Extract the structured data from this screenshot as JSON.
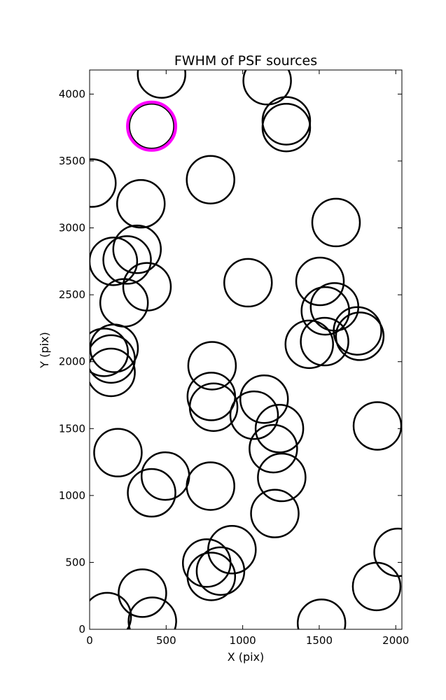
{
  "chart_data": {
    "type": "scatter",
    "title": "FWHM of PSF sources",
    "xlabel": "X (pix)",
    "ylabel": "Y (pix)",
    "xlim": [
      0,
      2040
    ],
    "ylim": [
      0,
      4180
    ],
    "xticks": [
      0,
      500,
      1000,
      1500,
      2000
    ],
    "yticks": [
      0,
      500,
      1000,
      1500,
      2000,
      2500,
      3000,
      3500,
      4000
    ],
    "grid": false,
    "marker": "open-circle",
    "highlight_color": "#ff00ff",
    "series": [
      {
        "points": [
          {
            "x": 470,
            "y": 4150
          },
          {
            "x": 1160,
            "y": 4100
          },
          {
            "x": 1285,
            "y": 3800
          },
          {
            "x": 1285,
            "y": 3750
          },
          {
            "x": 15,
            "y": 3335
          },
          {
            "x": 790,
            "y": 3360
          },
          {
            "x": 335,
            "y": 3180
          },
          {
            "x": 1610,
            "y": 3040
          },
          {
            "x": 310,
            "y": 2840
          },
          {
            "x": 155,
            "y": 2750
          },
          {
            "x": 245,
            "y": 2760
          },
          {
            "x": 375,
            "y": 2560
          },
          {
            "x": 225,
            "y": 2440
          },
          {
            "x": 1035,
            "y": 2590
          },
          {
            "x": 1505,
            "y": 2600
          },
          {
            "x": 1540,
            "y": 2380
          },
          {
            "x": 1600,
            "y": 2410
          },
          {
            "x": 1435,
            "y": 2130
          },
          {
            "x": 1535,
            "y": 2150
          },
          {
            "x": 1750,
            "y": 2230
          },
          {
            "x": 1765,
            "y": 2190
          },
          {
            "x": 160,
            "y": 2100
          },
          {
            "x": 95,
            "y": 2070
          },
          {
            "x": 140,
            "y": 2020
          },
          {
            "x": 140,
            "y": 1920
          },
          {
            "x": 800,
            "y": 1970
          },
          {
            "x": 795,
            "y": 1740
          },
          {
            "x": 810,
            "y": 1660
          },
          {
            "x": 1140,
            "y": 1720
          },
          {
            "x": 1075,
            "y": 1600
          },
          {
            "x": 1240,
            "y": 1500
          },
          {
            "x": 1200,
            "y": 1350
          },
          {
            "x": 1880,
            "y": 1520
          },
          {
            "x": 185,
            "y": 1320
          },
          {
            "x": 495,
            "y": 1145
          },
          {
            "x": 405,
            "y": 1020
          },
          {
            "x": 790,
            "y": 1070
          },
          {
            "x": 1255,
            "y": 1135
          },
          {
            "x": 1210,
            "y": 865
          },
          {
            "x": 2015,
            "y": 575
          },
          {
            "x": 930,
            "y": 595
          },
          {
            "x": 765,
            "y": 495
          },
          {
            "x": 855,
            "y": 435
          },
          {
            "x": 795,
            "y": 395
          },
          {
            "x": 1875,
            "y": 320
          },
          {
            "x": 115,
            "y": 95
          },
          {
            "x": 345,
            "y": 270
          },
          {
            "x": 410,
            "y": 60
          },
          {
            "x": 1515,
            "y": 45
          }
        ]
      },
      {
        "highlight": true,
        "points": [
          {
            "x": 405,
            "y": 3760
          }
        ]
      }
    ]
  }
}
